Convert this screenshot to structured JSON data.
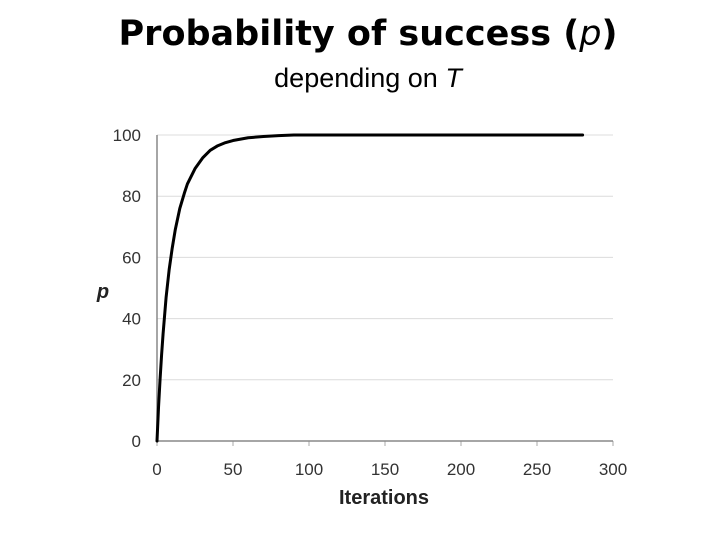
{
  "chart_data": {
    "type": "line",
    "title": "Probability of success (",
    "title_var": "p",
    "title_end": ")",
    "subtitle": "depending on ",
    "subtitle_var": "T",
    "xlabel": "Iterations",
    "ylabel": "p",
    "xlim": [
      0,
      300
    ],
    "ylim": [
      0,
      100
    ],
    "xticks": [
      0,
      50,
      100,
      150,
      200,
      250,
      300
    ],
    "yticks": [
      0,
      20,
      40,
      60,
      80,
      100
    ],
    "grid": "horizontal",
    "legend": "none",
    "line_color": "#000000",
    "x": [
      0,
      1,
      2,
      3,
      4,
      5,
      6,
      8,
      10,
      12,
      15,
      18,
      20,
      25,
      30,
      35,
      40,
      45,
      50,
      60,
      70,
      80,
      90,
      100,
      150,
      200,
      250,
      280
    ],
    "y": [
      0,
      11,
      20,
      28,
      35,
      41,
      47,
      56,
      63,
      69,
      76,
      81,
      84,
      89,
      92.5,
      95,
      96.5,
      97.5,
      98.2,
      99.1,
      99.5,
      99.8,
      100,
      100,
      100,
      100,
      100,
      100
    ]
  }
}
